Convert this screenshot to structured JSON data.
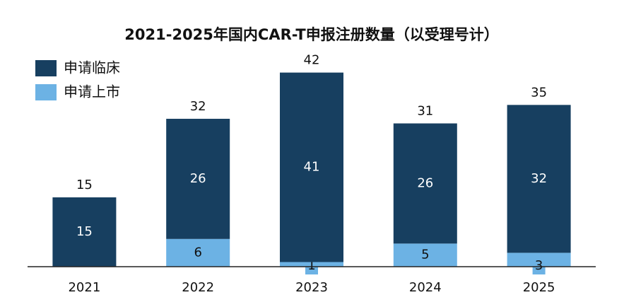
{
  "chart_data": {
    "type": "stacked_bar",
    "title": "2021-2025年国内CAR-T申报注册数量（以受理号计）",
    "categories": [
      "2021",
      "2022",
      "2023",
      "2024",
      "2025"
    ],
    "series": [
      {
        "name": "申请上市",
        "color": "#6cb2e4",
        "values": [
          null,
          6,
          1,
          5,
          3
        ]
      },
      {
        "name": "申请临床",
        "color": "#173f60",
        "values": [
          15,
          26,
          41,
          26,
          32
        ]
      }
    ],
    "totals": [
      15,
      32,
      42,
      31,
      35
    ],
    "ylim": [
      0,
      45
    ]
  }
}
